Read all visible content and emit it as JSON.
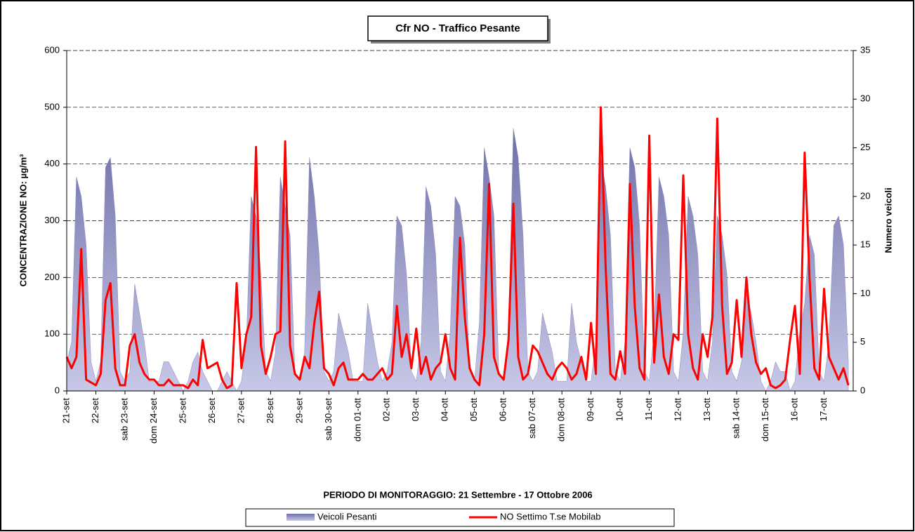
{
  "chart_data": {
    "type": "area-line",
    "title": "Cfr NO - Traffico Pesante",
    "x_label": "PERIODO DI MONITORAGGIO: 21 Settembre - 17 Ottobre 2006",
    "y_label": "CONCENTRAZIONE NO:  µg/m³",
    "y2_label": "Numero veicoli",
    "categories": [
      "21-set",
      null,
      null,
      null,
      null,
      null,
      "22-set",
      null,
      null,
      null,
      null,
      null,
      "sab 23-set",
      null,
      null,
      null,
      null,
      null,
      "dom 24-set",
      null,
      null,
      null,
      null,
      null,
      "25-set",
      null,
      null,
      null,
      null,
      null,
      "26-set",
      null,
      null,
      null,
      null,
      null,
      "27-set",
      null,
      null,
      null,
      null,
      null,
      "28-set",
      null,
      null,
      null,
      null,
      null,
      "29-set",
      null,
      null,
      null,
      null,
      null,
      "sab 30-set",
      null,
      null,
      null,
      null,
      null,
      "dom 01-ott",
      null,
      null,
      null,
      null,
      null,
      "02-ott",
      null,
      null,
      null,
      null,
      null,
      "03-ott",
      null,
      null,
      null,
      null,
      null,
      "04-ott",
      null,
      null,
      null,
      null,
      null,
      "05-ott",
      null,
      null,
      null,
      null,
      null,
      "06-ott",
      null,
      null,
      null,
      null,
      null,
      "sab 07-ott",
      null,
      null,
      null,
      null,
      null,
      "dom 08-ott",
      null,
      null,
      null,
      null,
      null,
      "09-ott",
      null,
      null,
      null,
      null,
      null,
      "10-ott",
      null,
      null,
      null,
      null,
      null,
      "11-ott",
      null,
      null,
      null,
      null,
      null,
      "12-ott",
      null,
      null,
      null,
      null,
      null,
      "13-ott",
      null,
      null,
      null,
      null,
      null,
      "sab 14-ott",
      null,
      null,
      null,
      null,
      null,
      "dom 15-ott",
      null,
      null,
      null,
      null,
      null,
      "16-ott",
      null,
      null,
      null,
      null,
      null,
      "17-ott",
      null,
      null,
      null,
      null,
      null
    ],
    "series": [
      {
        "name": "Veicoli Pesanti",
        "type": "area",
        "axis": "y2",
        "color": "#8c8cbf",
        "values": [
          3,
          5,
          22,
          20,
          15,
          3,
          1,
          3,
          23,
          24,
          18,
          2,
          1,
          2,
          11,
          8,
          5,
          1,
          1,
          1,
          3,
          3,
          2,
          1,
          0,
          1,
          3,
          4,
          2,
          1,
          0,
          0,
          1,
          2,
          1,
          0,
          1,
          5,
          20,
          18,
          12,
          2,
          1,
          4,
          22,
          19,
          16,
          2,
          1,
          4,
          24,
          20,
          14,
          2,
          1,
          2,
          8,
          6,
          4,
          1,
          1,
          1,
          9,
          6,
          3,
          1,
          2,
          5,
          18,
          17,
          12,
          2,
          1,
          5,
          21,
          19,
          14,
          2,
          1,
          6,
          20,
          19,
          15,
          2,
          1,
          7,
          25,
          22,
          18,
          2,
          1,
          6,
          27,
          24,
          16,
          2,
          1,
          2,
          8,
          6,
          4,
          1,
          1,
          1,
          9,
          5,
          3,
          1,
          1,
          5,
          24,
          21,
          16,
          2,
          1,
          5,
          25,
          23,
          17,
          2,
          1,
          6,
          22,
          20,
          16,
          2,
          1,
          6,
          20,
          18,
          14,
          2,
          1,
          5,
          18,
          16,
          12,
          2,
          1,
          3,
          10,
          8,
          5,
          1,
          0,
          1,
          3,
          2,
          2,
          0,
          1,
          6,
          9,
          16,
          14,
          2,
          1,
          5,
          17,
          18,
          15,
          3
        ]
      },
      {
        "name": "NO Settimo T.se Mobilab",
        "type": "line",
        "axis": "y",
        "color": "#ff0000",
        "values": [
          60,
          40,
          60,
          250,
          20,
          15,
          10,
          30,
          160,
          190,
          40,
          10,
          10,
          80,
          100,
          50,
          30,
          20,
          20,
          10,
          10,
          20,
          10,
          10,
          10,
          5,
          20,
          10,
          90,
          40,
          45,
          50,
          20,
          5,
          10,
          190,
          40,
          100,
          130,
          430,
          80,
          30,
          60,
          100,
          105,
          440,
          80,
          30,
          20,
          60,
          40,
          120,
          175,
          40,
          30,
          10,
          40,
          50,
          20,
          20,
          20,
          30,
          20,
          20,
          30,
          40,
          20,
          30,
          150,
          60,
          100,
          40,
          110,
          30,
          60,
          20,
          40,
          50,
          100,
          40,
          20,
          270,
          130,
          40,
          20,
          10,
          100,
          365,
          60,
          30,
          20,
          90,
          330,
          60,
          20,
          30,
          80,
          70,
          50,
          30,
          20,
          40,
          50,
          40,
          20,
          30,
          60,
          20,
          120,
          30,
          500,
          220,
          30,
          20,
          70,
          30,
          365,
          150,
          40,
          20,
          450,
          50,
          170,
          60,
          30,
          100,
          90,
          380,
          100,
          40,
          20,
          100,
          60,
          130,
          480,
          150,
          30,
          50,
          160,
          60,
          200,
          100,
          50,
          30,
          40,
          10,
          5,
          10,
          20,
          90,
          150,
          30,
          420,
          200,
          40,
          20,
          180,
          60,
          40,
          20,
          40,
          10
        ]
      }
    ],
    "ylim": [
      0,
      600
    ],
    "yticks": [
      0,
      100,
      200,
      300,
      400,
      500,
      600
    ],
    "y2lim": [
      0,
      35
    ],
    "y2ticks": [
      0,
      5,
      10,
      15,
      20,
      25,
      30,
      35
    ],
    "grid": true,
    "legend": "bottom"
  }
}
